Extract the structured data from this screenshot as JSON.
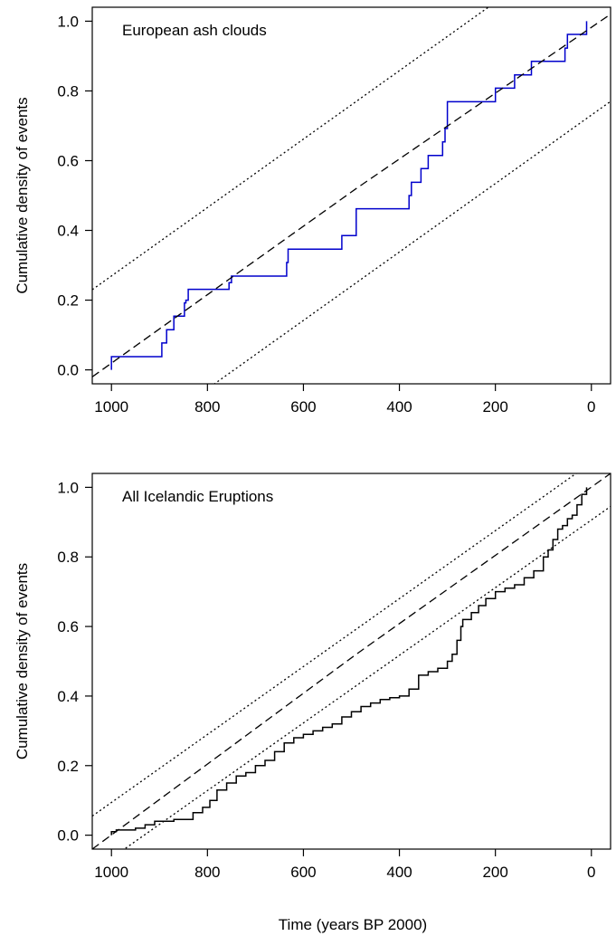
{
  "figure": {
    "xlabel": "Time (years BP 2000)"
  },
  "chart_data": [
    {
      "type": "line",
      "annotation": "European ash clouds",
      "xlabel": "",
      "ylabel": "Cumulative density of events",
      "x_reversed": true,
      "xlim": [
        1040,
        -40
      ],
      "ylim": [
        -0.04,
        1.04
      ],
      "xticks": [
        1000,
        800,
        600,
        400,
        200,
        0
      ],
      "yticks": [
        0.0,
        0.2,
        0.4,
        0.6,
        0.8,
        1.0
      ],
      "ytick_labels": [
        "0.0",
        "0.2",
        "0.4",
        "0.6",
        "0.8",
        "1.0"
      ],
      "grid": false,
      "series": [
        {
          "style": "step",
          "color": "#0000cc",
          "x": [
            1000,
            895,
            885,
            870,
            848,
            845,
            840,
            755,
            750,
            635,
            632,
            520,
            490,
            380,
            375,
            355,
            340,
            310,
            305,
            300,
            200,
            160,
            125,
            55,
            50,
            10
          ],
          "y": [
            0.038,
            0.077,
            0.115,
            0.154,
            0.192,
            0.2,
            0.231,
            0.25,
            0.269,
            0.308,
            0.346,
            0.385,
            0.462,
            0.5,
            0.538,
            0.577,
            0.615,
            0.654,
            0.692,
            0.769,
            0.808,
            0.846,
            0.885,
            0.923,
            0.962,
            1.0
          ]
        },
        {
          "style": "dashed",
          "color": "#000000",
          "x": [
            1040,
            490,
            -40
          ],
          "y": [
            -0.02,
            0.52,
            1.02
          ]
        },
        {
          "style": "dotted",
          "color": "#000000",
          "x": [
            1040,
            -40
          ],
          "y": [
            0.23,
            1.29
          ]
        },
        {
          "style": "dotted",
          "color": "#000000",
          "x": [
            1040,
            -40
          ],
          "y": [
            -0.29,
            0.77
          ]
        }
      ]
    },
    {
      "type": "line",
      "annotation": "All Icelandic Eruptions",
      "xlabel": "",
      "ylabel": "Cumulative density of events",
      "x_reversed": true,
      "xlim": [
        1040,
        -40
      ],
      "ylim": [
        -0.04,
        1.04
      ],
      "xticks": [
        1000,
        800,
        600,
        400,
        200,
        0
      ],
      "yticks": [
        0.0,
        0.2,
        0.4,
        0.6,
        0.8,
        1.0
      ],
      "ytick_labels": [
        "0.0",
        "0.2",
        "0.4",
        "0.6",
        "0.8",
        "1.0"
      ],
      "grid": false,
      "series": [
        {
          "style": "step",
          "color": "#000000",
          "x": [
            1000,
            990,
            975,
            950,
            930,
            910,
            890,
            870,
            850,
            830,
            810,
            795,
            780,
            760,
            740,
            720,
            700,
            680,
            660,
            640,
            620,
            600,
            580,
            560,
            540,
            520,
            500,
            480,
            460,
            440,
            420,
            400,
            380,
            360,
            340,
            320,
            300,
            290,
            280,
            272,
            268,
            250,
            235,
            220,
            200,
            180,
            160,
            140,
            120,
            100,
            90,
            80,
            70,
            60,
            50,
            40,
            30,
            20,
            10
          ],
          "y": [
            0.01,
            0.015,
            0.015,
            0.02,
            0.03,
            0.04,
            0.04,
            0.045,
            0.045,
            0.065,
            0.08,
            0.1,
            0.13,
            0.15,
            0.17,
            0.18,
            0.2,
            0.215,
            0.24,
            0.265,
            0.28,
            0.29,
            0.3,
            0.31,
            0.32,
            0.34,
            0.355,
            0.37,
            0.38,
            0.39,
            0.395,
            0.4,
            0.42,
            0.46,
            0.47,
            0.48,
            0.5,
            0.52,
            0.56,
            0.6,
            0.62,
            0.64,
            0.66,
            0.68,
            0.7,
            0.71,
            0.72,
            0.74,
            0.76,
            0.8,
            0.82,
            0.85,
            0.88,
            0.89,
            0.91,
            0.92,
            0.95,
            0.98,
            1.0
          ]
        },
        {
          "style": "dashed",
          "color": "#000000",
          "x": [
            1040,
            490,
            -40
          ],
          "y": [
            -0.04,
            0.52,
            1.04
          ]
        },
        {
          "style": "dotted",
          "color": "#000000",
          "x": [
            1040,
            -40
          ],
          "y": [
            0.055,
            1.11
          ]
        },
        {
          "style": "dotted",
          "color": "#000000",
          "x": [
            1040,
            -40
          ],
          "y": [
            -0.105,
            0.945
          ]
        }
      ]
    }
  ]
}
